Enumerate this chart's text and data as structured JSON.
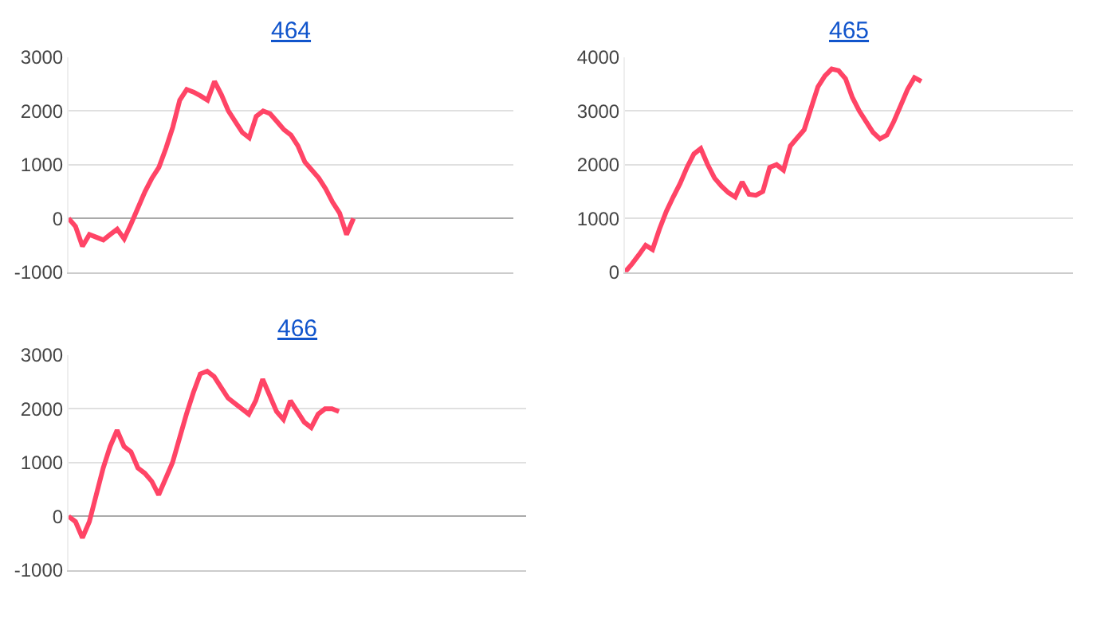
{
  "chart_data": [
    {
      "type": "line",
      "title": "464",
      "categories": [
        null,
        null,
        null,
        null,
        null,
        null,
        null,
        null,
        null,
        null,
        null,
        null,
        null,
        null,
        null,
        null,
        null,
        null,
        null,
        null,
        null,
        null,
        null,
        null,
        null,
        null,
        null,
        null,
        null,
        null,
        null,
        null,
        null,
        null,
        null,
        null,
        null,
        null,
        null,
        null,
        null,
        null,
        null,
        null,
        null,
        null,
        null,
        null,
        null,
        null,
        null,
        null,
        null,
        null,
        null,
        null,
        null,
        null,
        null,
        null,
        null,
        null,
        null,
        null,
        null
      ],
      "series": [
        {
          "color": "#ff4466",
          "values": [
            0,
            -150,
            -520,
            -300,
            -350,
            -400,
            -300,
            -200,
            -380,
            -100,
            200,
            500,
            750,
            950,
            1300,
            1700,
            2200,
            2400,
            2350,
            2280,
            2200,
            2550,
            2300,
            2000,
            1800,
            1600,
            1500,
            1900,
            2000,
            1950,
            1800,
            1650,
            1550,
            1350,
            1050,
            900,
            750,
            550,
            300,
            100,
            -300,
            0,
            null,
            null,
            null,
            null,
            null,
            null,
            null,
            null,
            null,
            null,
            null,
            null,
            null,
            null,
            null,
            null,
            null,
            null,
            null,
            null,
            null,
            null,
            null
          ]
        }
      ],
      "ylim": [
        -1000,
        3000
      ],
      "yticks": [
        -1000,
        0,
        1000,
        2000,
        3000
      ],
      "grid": "y",
      "tick_labels": "y"
    },
    {
      "type": "line",
      "title": "465",
      "categories": [
        null,
        null,
        null,
        null,
        null,
        null,
        null,
        null,
        null,
        null,
        null,
        null,
        null,
        null,
        null,
        null,
        null,
        null,
        null,
        null,
        null,
        null,
        null,
        null,
        null,
        null,
        null,
        null,
        null,
        null,
        null,
        null,
        null,
        null,
        null,
        null,
        null,
        null,
        null,
        null,
        null,
        null,
        null,
        null,
        null,
        null,
        null,
        null,
        null,
        null,
        null,
        null,
        null,
        null,
        null,
        null,
        null,
        null,
        null,
        null,
        null,
        null,
        null,
        null,
        null,
        null
      ],
      "series": [
        {
          "color": "#ff4466",
          "values": [
            0,
            150,
            320,
            500,
            420,
            800,
            1130,
            1400,
            1650,
            1950,
            2200,
            2300,
            2000,
            1750,
            1600,
            1480,
            1400,
            1680,
            1450,
            1430,
            1500,
            1950,
            2000,
            1900,
            2350,
            2500,
            2650,
            3050,
            3450,
            3650,
            3780,
            3750,
            3600,
            3250,
            3000,
            2800,
            2600,
            2480,
            2550,
            2800,
            3100,
            3400,
            3620,
            3550,
            null,
            null,
            null,
            null,
            null,
            null,
            null,
            null,
            null,
            null,
            null,
            null,
            null,
            null,
            null,
            null,
            null,
            null,
            null,
            null,
            null,
            null
          ]
        }
      ],
      "ylim": [
        0,
        4000
      ],
      "yticks": [
        0,
        1000,
        2000,
        3000,
        4000
      ],
      "grid": "y",
      "tick_labels": "y"
    },
    {
      "type": "line",
      "title": "466",
      "categories": [
        null,
        null,
        null,
        null,
        null,
        null,
        null,
        null,
        null,
        null,
        null,
        null,
        null,
        null,
        null,
        null,
        null,
        null,
        null,
        null,
        null,
        null,
        null,
        null,
        null,
        null,
        null,
        null,
        null,
        null,
        null,
        null,
        null,
        null,
        null,
        null,
        null,
        null,
        null,
        null,
        null,
        null,
        null,
        null,
        null,
        null,
        null,
        null,
        null,
        null,
        null,
        null,
        null,
        null,
        null,
        null,
        null,
        null,
        null,
        null,
        null,
        null,
        null,
        null,
        null,
        null,
        null
      ],
      "series": [
        {
          "color": "#ff4466",
          "values": [
            0,
            -100,
            -400,
            -100,
            400,
            900,
            1300,
            1600,
            1300,
            1200,
            900,
            800,
            650,
            400,
            700,
            1000,
            1450,
            1900,
            2300,
            2650,
            2700,
            2600,
            2400,
            2200,
            2100,
            2000,
            1900,
            2150,
            2550,
            2250,
            1950,
            1800,
            2150,
            1950,
            1750,
            1650,
            1900,
            2000,
            2000,
            1950,
            null,
            null,
            null,
            null,
            null,
            null,
            null,
            null,
            null,
            null,
            null,
            null,
            null,
            null,
            null,
            null,
            null,
            null,
            null,
            null,
            null,
            null,
            null,
            null,
            null,
            null,
            null
          ]
        }
      ],
      "ylim": [
        -1000,
        3000
      ],
      "yticks": [
        -1000,
        0,
        1000,
        2000,
        3000
      ],
      "grid": "y",
      "tick_labels": "y"
    }
  ]
}
